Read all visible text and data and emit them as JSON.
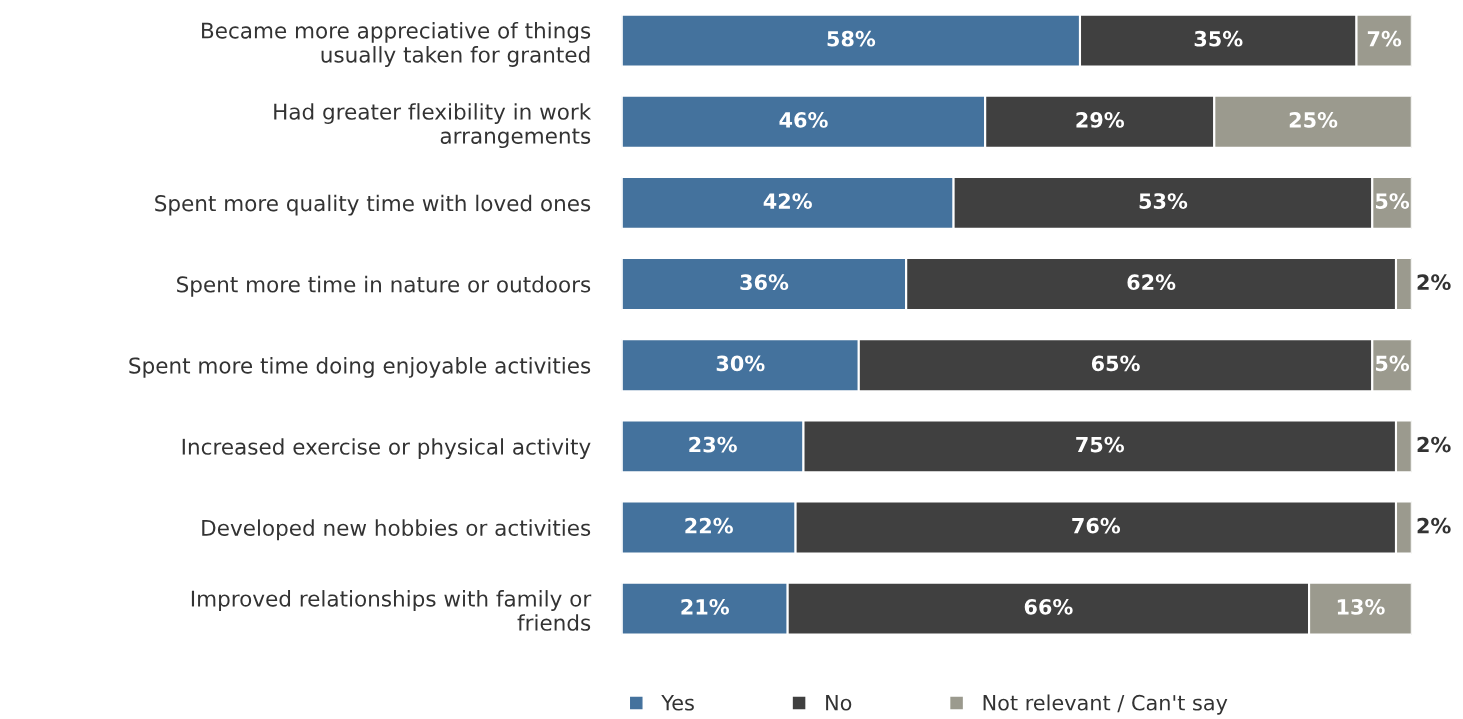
{
  "chart_data": {
    "type": "bar",
    "orientation": "horizontal",
    "stacked": true,
    "categories": [
      "Became more appreciative of things\nusually taken for granted",
      "Had greater flexibility in work\narrangements",
      "Spent more quality time with loved ones",
      "Spent more time in nature or outdoors",
      "Spent more time doing enjoyable activities",
      "Increased exercise or physical activity",
      "Developed new hobbies or activities",
      "Improved relationships with family or\nfriends"
    ],
    "series": [
      {
        "name": "Yes",
        "color": "#44729d",
        "values": [
          58,
          46,
          42,
          36,
          30,
          23,
          22,
          21
        ],
        "value_labels": [
          "58%",
          "46%",
          "42%",
          "36%",
          "30%",
          "23%",
          "22%",
          "21%"
        ]
      },
      {
        "name": "No",
        "color": "#404040",
        "values": [
          35,
          29,
          53,
          62,
          65,
          75,
          76,
          66
        ],
        "value_labels": [
          "35%",
          "29%",
          "53%",
          "62%",
          "65%",
          "75%",
          "76%",
          "66%"
        ]
      },
      {
        "name": "Not relevant / Can't say",
        "color": "#9b9a8e",
        "values": [
          7,
          25,
          5,
          2,
          5,
          2,
          2,
          13
        ],
        "value_labels": [
          "7%",
          "25%",
          "5%",
          "2%",
          "5%",
          "2%",
          "2%",
          "13%"
        ]
      }
    ],
    "xlim": [
      0,
      100
    ],
    "tick_labels": "y",
    "grid": false,
    "legend": "bottom"
  }
}
